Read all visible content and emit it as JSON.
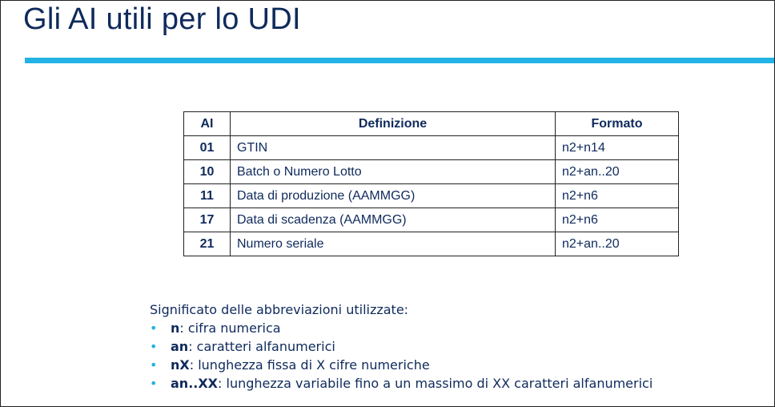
{
  "title": "Gli AI utili per lo UDI",
  "table": {
    "headers": {
      "ai": "AI",
      "definizione": "Definizione",
      "formato": "Formato"
    },
    "rows": [
      {
        "ai": "01",
        "definizione": "GTIN",
        "formato": "n2+n14"
      },
      {
        "ai": "10",
        "definizione": "Batch o Numero Lotto",
        "formato": "n2+an..20"
      },
      {
        "ai": "11",
        "definizione": "Data di produzione (AAMMGG)",
        "formato": "n2+n6"
      },
      {
        "ai": "17",
        "definizione": "Data di scadenza (AAMMGG)",
        "formato": "n2+n6"
      },
      {
        "ai": "21",
        "definizione": "Numero seriale",
        "formato": "n2+an..20"
      }
    ]
  },
  "legend": {
    "title": "Significato delle abbreviazioni utilizzate:",
    "bullet_char": "•",
    "items": [
      {
        "abbr": "n",
        "desc": ": cifra numerica"
      },
      {
        "abbr": "an",
        "desc": ": caratteri alfanumerici"
      },
      {
        "abbr": "nX",
        "desc": ": lunghezza fissa di X cifre numeriche"
      },
      {
        "abbr": "an..XX",
        "desc": ": lunghezza variabile fino a un massimo di XX caratteri alfanumerici"
      }
    ]
  },
  "colors": {
    "title": "#0f2a5c",
    "accent_bar": "#22b3e4",
    "text": "#0f2a5c",
    "bullet": "#22b3e4"
  }
}
